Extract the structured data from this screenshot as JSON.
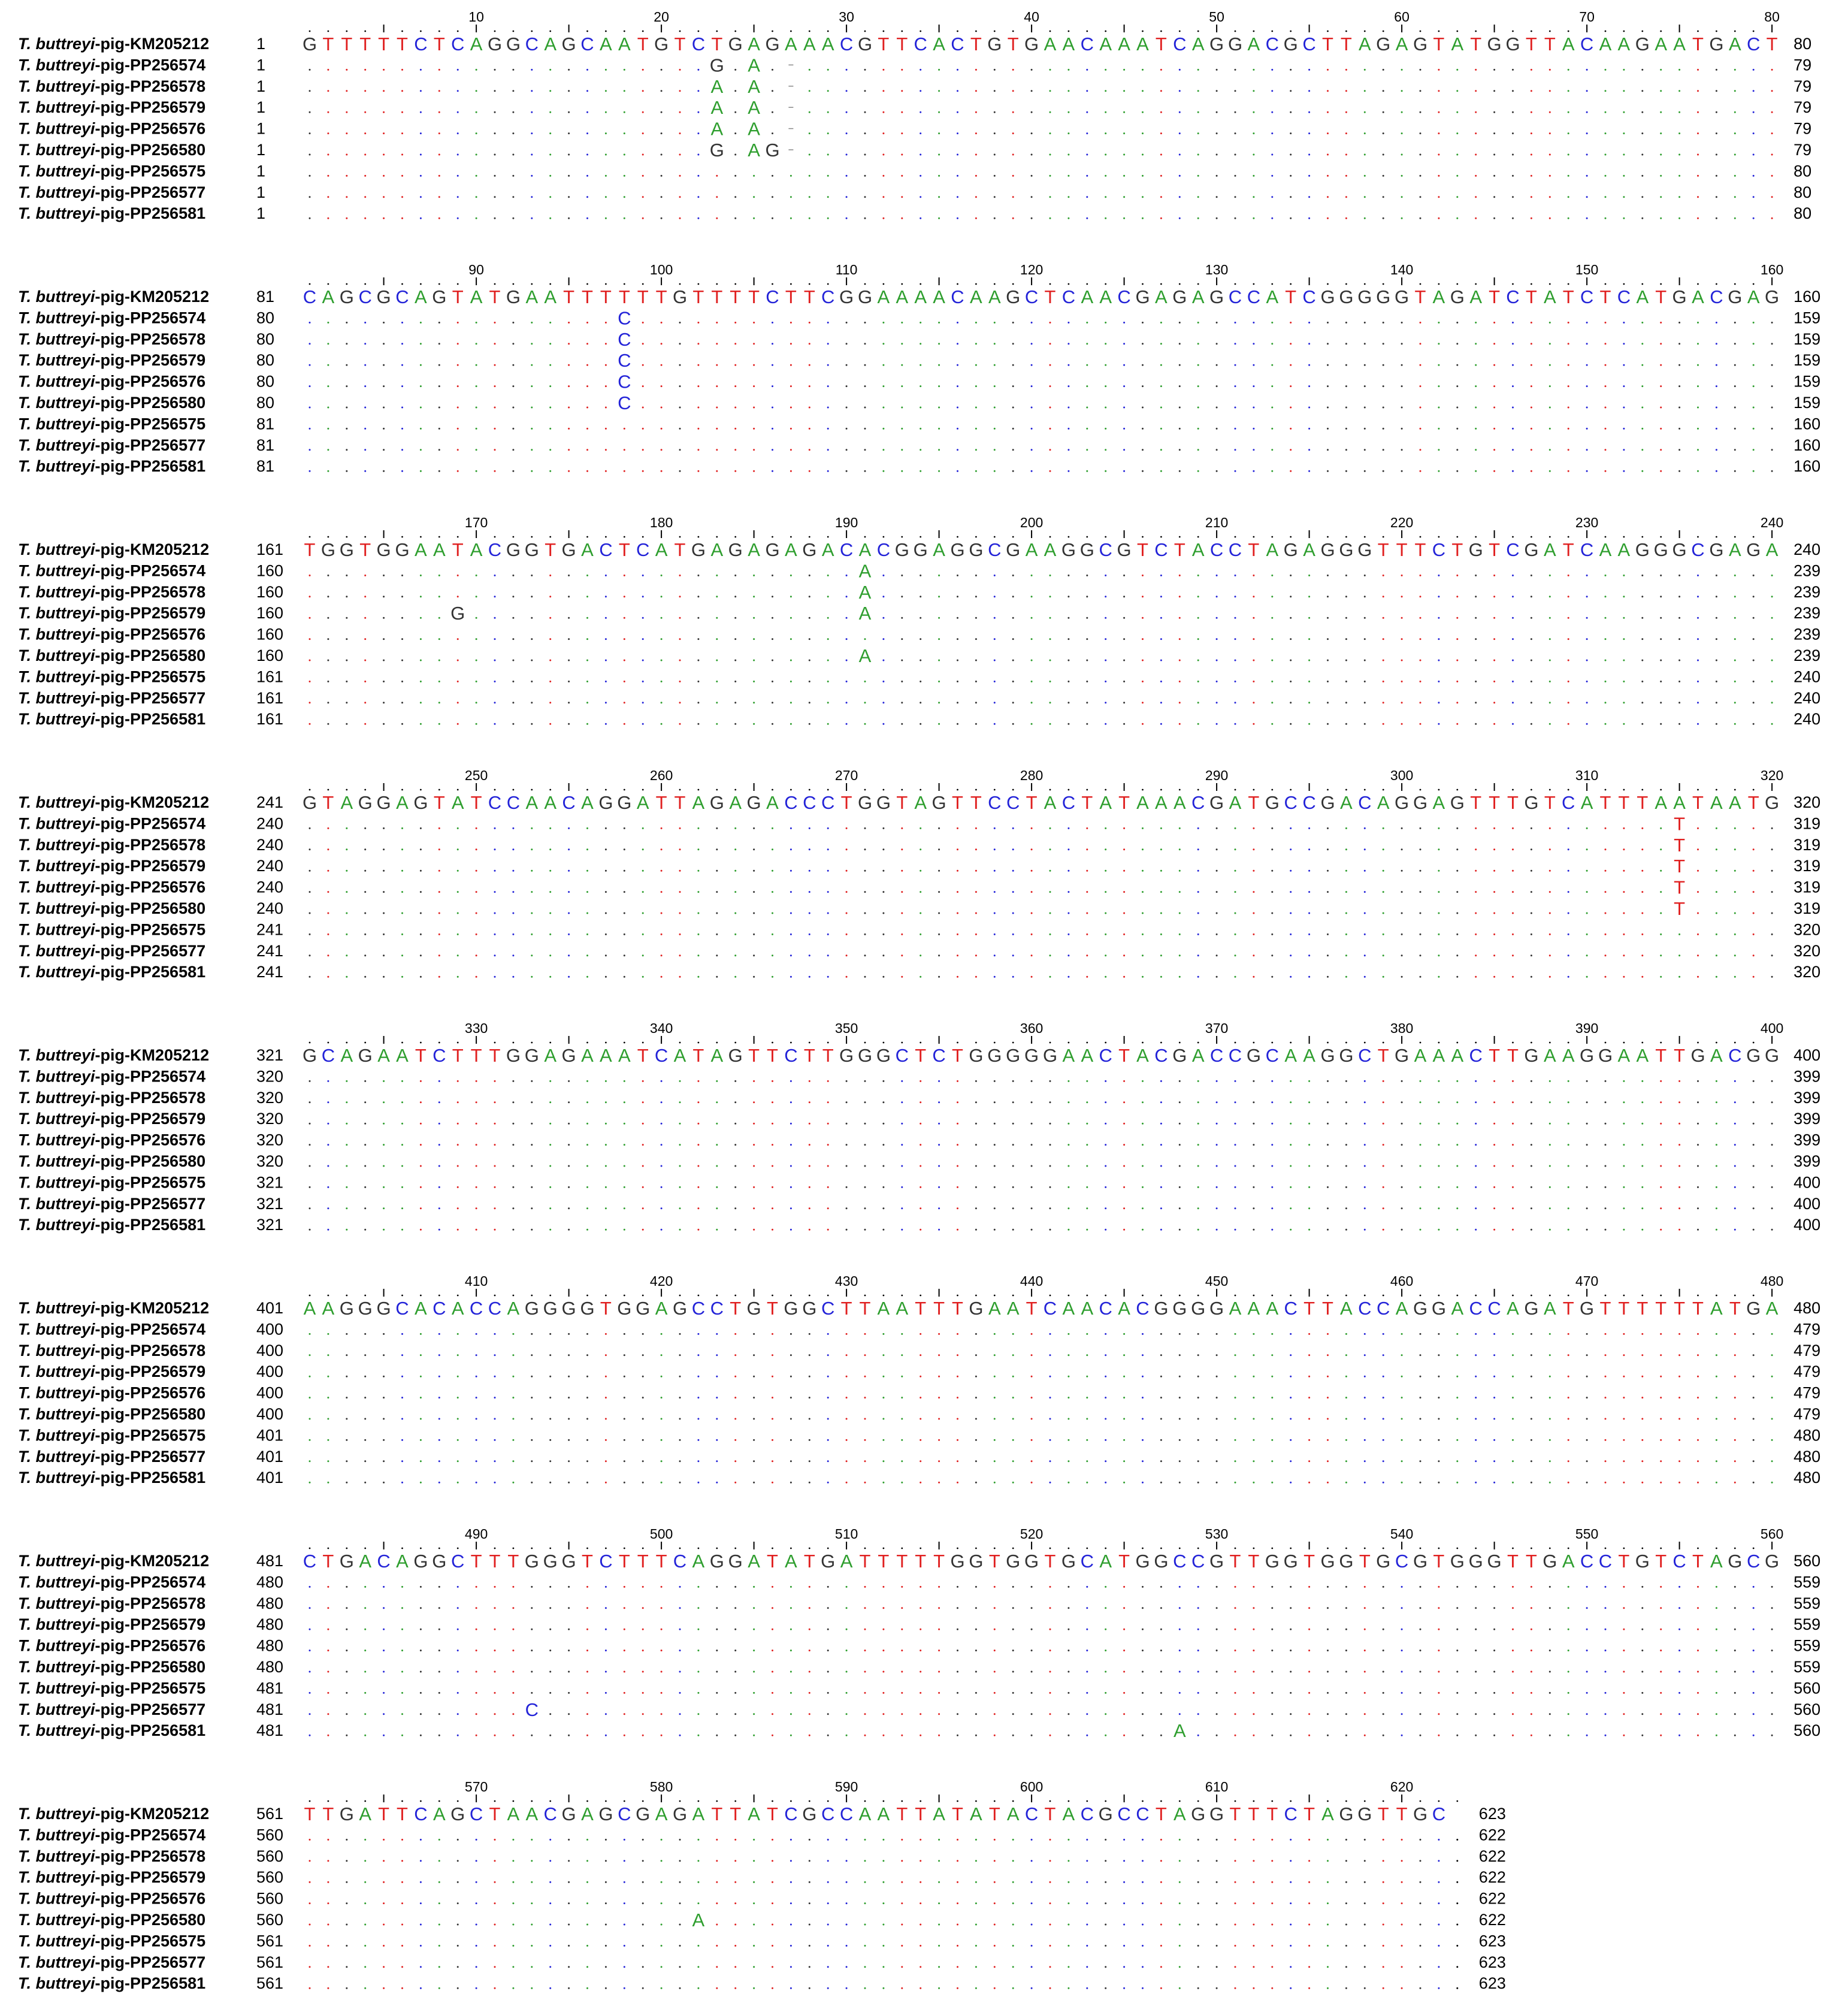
{
  "taxon_prefix": "T. buttreyi",
  "taxon_suffix": "-pig-",
  "sequences": [
    {
      "id": "KM205212"
    },
    {
      "id": "PP256574"
    },
    {
      "id": "PP256578"
    },
    {
      "id": "PP256579"
    },
    {
      "id": "PP256576"
    },
    {
      "id": "PP256580"
    },
    {
      "id": "PP256575"
    },
    {
      "id": "PP256577"
    },
    {
      "id": "PP256581"
    }
  ],
  "reference_sequence": "GTTTTTCTCAGGCAGCAATGTCTGAGAAACGTTCACTGTGAACAAATCAGGACGCTTAGAGTATGGTTACAAGAATGACTCAGCGCAGTATGAATTTTTTGTTTTCTTCGGAAAACAAGCTCAACGAGAGCCATCGGGGGTAGATCTATCTCATGACGAGTGGTGGAATACGGTGACTCATGAGAGAGACACGGAGGCGAAGGCGTCTACCTAGAGGGTTTCTGTCGATCAAGGGCGAGAGTAGGAGTATCCAACAGGATTAGAGACCCTGGTAGTTCCTACTATAAACGATGCCGACAGGAGTTTGTCATTTAATAATGGCAGAATCTTTGGAGAAATCATAGTTCTTGGGCTCTGGGGGAACTACGACCGCAAGGCTGAAACTTGAAGGAATTGACGGAAGGGCACACCAGGGGTGGAGCCTGTGGCTTAATTTGAATCAACACGGGGAAACTTACCAGGACCAGATGTTTTTTATGACTGACAGGCTTTGGGTCTTTCAGGATATGATTTTTGGTGGTGCATGGCCGTTGGTGGTGCGTGGGTTGACCTGTCTAGCGTTGATTCAGCTAACGAGCGAGATTATCGCCAATTATATACTACGCCTAGGTTTCTAGGTTGC",
  "block_width": 80,
  "ruler_label_interval": 10,
  "base_colors": {
    "A": "#2e9e2e",
    "C": "#2323d8",
    "G": "#333333",
    "T": "#e02020"
  },
  "blocks": [
    {
      "ruler_labels": [
        "10",
        "20",
        "30",
        "40",
        "50",
        "60",
        "70",
        "80"
      ],
      "start": [
        1,
        1,
        1,
        1,
        1,
        1,
        1,
        1,
        1
      ],
      "end": [
        80,
        79,
        79,
        79,
        79,
        79,
        80,
        80,
        80
      ],
      "columns": 80
    },
    {
      "ruler_labels": [
        "90",
        "100",
        "110",
        "120",
        "130",
        "140",
        "150",
        "160"
      ],
      "start": [
        81,
        80,
        80,
        80,
        80,
        80,
        81,
        81,
        81
      ],
      "end": [
        160,
        159,
        159,
        159,
        159,
        159,
        160,
        160,
        160
      ],
      "columns": 80
    },
    {
      "ruler_labels": [
        "170",
        "180",
        "190",
        "200",
        "210",
        "220",
        "230",
        "240"
      ],
      "start": [
        161,
        160,
        160,
        160,
        160,
        160,
        161,
        161,
        161
      ],
      "end": [
        240,
        239,
        239,
        239,
        239,
        239,
        240,
        240,
        240
      ],
      "columns": 80
    },
    {
      "ruler_labels": [
        "250",
        "260",
        "270",
        "280",
        "290",
        "300",
        "310",
        "320"
      ],
      "start": [
        241,
        240,
        240,
        240,
        240,
        240,
        241,
        241,
        241
      ],
      "end": [
        320,
        319,
        319,
        319,
        319,
        319,
        320,
        320,
        320
      ],
      "columns": 80
    },
    {
      "ruler_labels": [
        "330",
        "340",
        "350",
        "360",
        "370",
        "380",
        "390",
        "400"
      ],
      "start": [
        321,
        320,
        320,
        320,
        320,
        320,
        321,
        321,
        321
      ],
      "end": [
        400,
        399,
        399,
        399,
        399,
        399,
        400,
        400,
        400
      ],
      "columns": 80
    },
    {
      "ruler_labels": [
        "410",
        "420",
        "430",
        "440",
        "450",
        "460",
        "470",
        "480"
      ],
      "start": [
        401,
        400,
        400,
        400,
        400,
        400,
        401,
        401,
        401
      ],
      "end": [
        480,
        479,
        479,
        479,
        479,
        479,
        480,
        480,
        480
      ],
      "columns": 80
    },
    {
      "ruler_labels": [
        "490",
        "500",
        "510",
        "520",
        "530",
        "540",
        "550",
        "560"
      ],
      "start": [
        481,
        480,
        480,
        480,
        480,
        480,
        481,
        481,
        481
      ],
      "end": [
        560,
        559,
        559,
        559,
        559,
        559,
        560,
        560,
        560
      ],
      "columns": 80
    },
    {
      "ruler_labels": [
        "570",
        "580",
        "590",
        "600",
        "610",
        "620"
      ],
      "start": [
        561,
        560,
        560,
        560,
        560,
        560,
        561,
        561,
        561
      ],
      "end": [
        623,
        622,
        622,
        622,
        622,
        622,
        623,
        623,
        623
      ],
      "columns": 63
    }
  ],
  "variants": [
    {
      "seq": 1,
      "pos": 23,
      "base": "G"
    },
    {
      "seq": 1,
      "pos": 25,
      "base": "A"
    },
    {
      "seq": 1,
      "pos": 27,
      "base": "-"
    },
    {
      "seq": 2,
      "pos": 23,
      "base": "A"
    },
    {
      "seq": 2,
      "pos": 25,
      "base": "A"
    },
    {
      "seq": 2,
      "pos": 27,
      "base": "-"
    },
    {
      "seq": 3,
      "pos": 23,
      "base": "A"
    },
    {
      "seq": 3,
      "pos": 25,
      "base": "A"
    },
    {
      "seq": 3,
      "pos": 27,
      "base": "-"
    },
    {
      "seq": 4,
      "pos": 23,
      "base": "A"
    },
    {
      "seq": 4,
      "pos": 25,
      "base": "A"
    },
    {
      "seq": 4,
      "pos": 27,
      "base": "-"
    },
    {
      "seq": 5,
      "pos": 23,
      "base": "G"
    },
    {
      "seq": 5,
      "pos": 25,
      "base": "A"
    },
    {
      "seq": 5,
      "pos": 26,
      "base": "G"
    },
    {
      "seq": 5,
      "pos": 27,
      "base": "-"
    },
    {
      "seq": 1,
      "pos": 98,
      "base": "C"
    },
    {
      "seq": 2,
      "pos": 98,
      "base": "C"
    },
    {
      "seq": 3,
      "pos": 98,
      "base": "C"
    },
    {
      "seq": 4,
      "pos": 98,
      "base": "C"
    },
    {
      "seq": 5,
      "pos": 98,
      "base": "C"
    },
    {
      "seq": 3,
      "pos": 169,
      "base": "G"
    },
    {
      "seq": 1,
      "pos": 191,
      "base": "A"
    },
    {
      "seq": 2,
      "pos": 191,
      "base": "A"
    },
    {
      "seq": 3,
      "pos": 191,
      "base": "A"
    },
    {
      "seq": 5,
      "pos": 191,
      "base": "A"
    },
    {
      "seq": 1,
      "pos": 315,
      "base": "T"
    },
    {
      "seq": 2,
      "pos": 315,
      "base": "T"
    },
    {
      "seq": 3,
      "pos": 315,
      "base": "T"
    },
    {
      "seq": 4,
      "pos": 315,
      "base": "T"
    },
    {
      "seq": 5,
      "pos": 315,
      "base": "T"
    },
    {
      "seq": 7,
      "pos": 493,
      "base": "C"
    },
    {
      "seq": 8,
      "pos": 528,
      "base": "A"
    },
    {
      "seq": 5,
      "pos": 582,
      "base": "A"
    }
  ]
}
